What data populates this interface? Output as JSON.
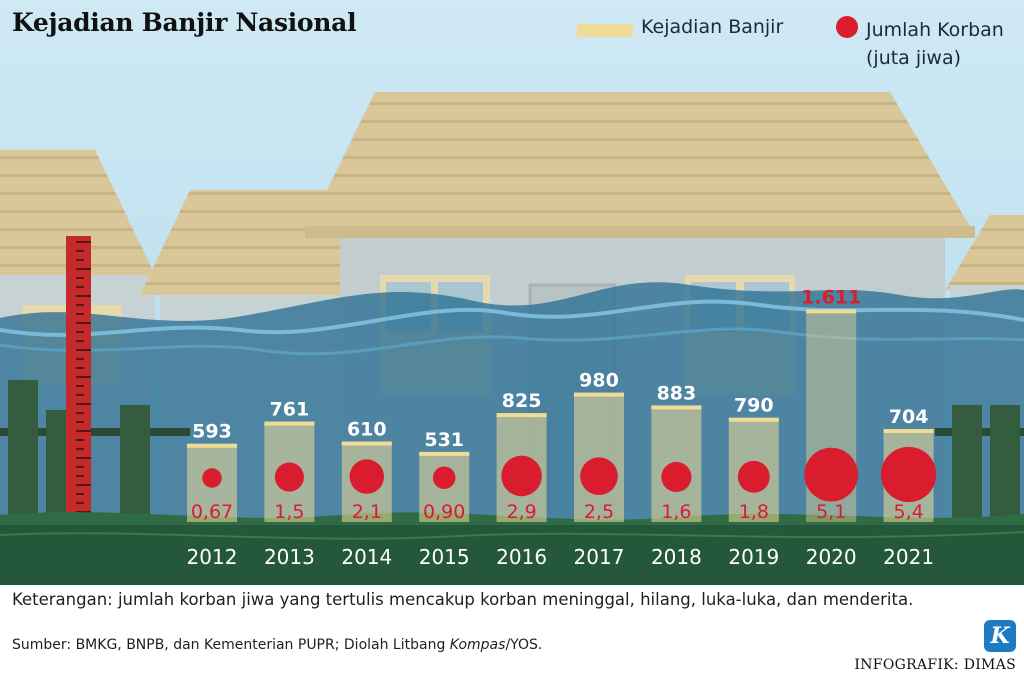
{
  "title": "Kejadian Banjir Nasional",
  "legend": {
    "bar_label": "Kejadian Banjir",
    "dot_label_line1": "Jumlah Korban",
    "dot_label_line2": "(juta jiwa)"
  },
  "chart_data": {
    "type": "bar",
    "title": "Kejadian Banjir Nasional",
    "categories": [
      "2012",
      "2013",
      "2014",
      "2015",
      "2016",
      "2017",
      "2018",
      "2019",
      "2020",
      "2021"
    ],
    "series": [
      {
        "name": "Kejadian Banjir",
        "values": [
          593,
          761,
          610,
          531,
          825,
          980,
          883,
          790,
          1611,
          704
        ],
        "labels": [
          "593",
          "761",
          "610",
          "531",
          "825",
          "980",
          "883",
          "790",
          "1.611",
          "704"
        ]
      },
      {
        "name": "Jumlah Korban (juta jiwa)",
        "values": [
          0.67,
          1.5,
          2.1,
          0.9,
          2.9,
          2.5,
          1.6,
          1.8,
          5.1,
          5.4
        ],
        "labels": [
          "0,67",
          "1,5",
          "2,1",
          "0,90",
          "2,9",
          "2,5",
          "1,6",
          "1,8",
          "5,1",
          "5,4"
        ]
      }
    ],
    "highlight_category": "2020",
    "colors": {
      "bar": "#f0dc97",
      "bar_highlight_label": "#d91d2e",
      "dot": "#d91d2e",
      "value_label": "#ffffff",
      "year_label": "#ffffff"
    }
  },
  "note": "Keterangan: jumlah korban jiwa yang tertulis mencakup korban meninggal, hilang, luka-luka, dan menderita.",
  "source": {
    "prefix": "Sumber: BMKG, BNPB, dan Kementerian PUPR; Diolah Litbang ",
    "italic": "Kompas",
    "suffix": "/YOS."
  },
  "credit": "INFOGRAFIK: DIMAS",
  "logo_letter": "K"
}
